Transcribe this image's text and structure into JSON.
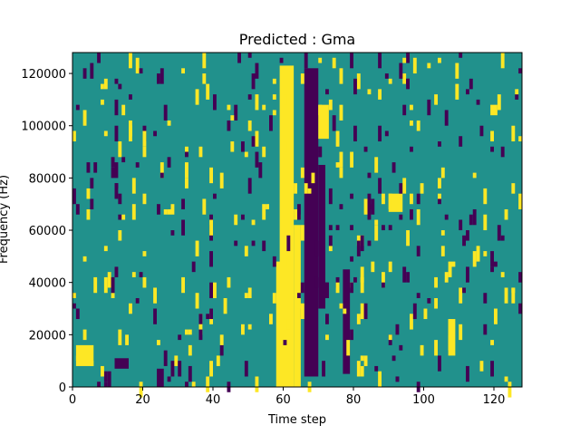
{
  "chart_data": {
    "type": "heatmap",
    "title": "Predicted : Gma",
    "xlabel": "Time step",
    "ylabel": "Frequency (Hz)",
    "xlim": [
      0,
      128
    ],
    "ylim": [
      0,
      128000
    ],
    "x_ticks": [
      0,
      20,
      40,
      60,
      80,
      100,
      120
    ],
    "y_ticks": [
      0,
      20000,
      40000,
      60000,
      80000,
      100000,
      120000
    ],
    "grid": false,
    "legend": "none",
    "colormap": {
      "name": "viridis",
      "low": "#440154",
      "mid": "#21918c",
      "high": "#fde725"
    },
    "background_value": "mid",
    "bands": [
      {
        "x_from": 58,
        "x_to": 61,
        "y_from": 0,
        "y_to": 48000,
        "value": "high"
      },
      {
        "x_from": 59,
        "x_to": 63,
        "y_from": 0,
        "y_to": 123000,
        "value": "high"
      },
      {
        "x_from": 63,
        "x_to": 65,
        "y_from": 0,
        "y_to": 62000,
        "value": "high"
      },
      {
        "x_from": 66,
        "x_to": 70,
        "y_from": 4000,
        "y_to": 122000,
        "value": "low"
      },
      {
        "x_from": 70,
        "x_to": 72,
        "y_from": 30000,
        "y_to": 85000,
        "value": "low"
      },
      {
        "x_from": 70,
        "x_to": 73,
        "y_from": 95000,
        "y_to": 108000,
        "value": "high"
      },
      {
        "x_from": 77,
        "x_to": 79,
        "y_from": 5000,
        "y_to": 45000,
        "value": "low"
      },
      {
        "x_from": 1,
        "x_to": 6,
        "y_from": 8000,
        "y_to": 16000,
        "value": "high"
      },
      {
        "x_from": 12,
        "x_to": 16,
        "y_from": 7000,
        "y_to": 11000,
        "value": "low"
      },
      {
        "x_from": 24,
        "x_to": 26,
        "y_from": 0,
        "y_to": 7000,
        "value": "low"
      },
      {
        "x_from": 90,
        "x_to": 94,
        "y_from": 67000,
        "y_to": 74000,
        "value": "high"
      },
      {
        "x_from": 107,
        "x_to": 109,
        "y_from": 12000,
        "y_to": 26000,
        "value": "high"
      },
      {
        "x_from": 119,
        "x_to": 121,
        "y_from": 104000,
        "y_to": 108000,
        "value": "high"
      }
    ]
  }
}
